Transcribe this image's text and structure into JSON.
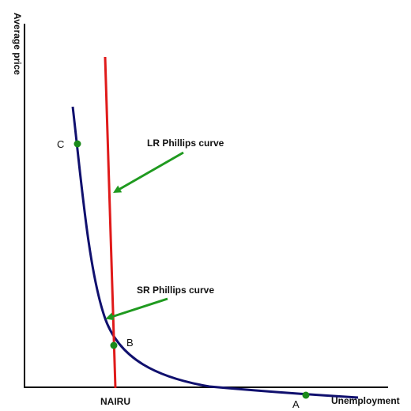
{
  "axes": {
    "y_label": "Average price",
    "x_label": "Unemployment",
    "x_tick": "NAIRU"
  },
  "curves": {
    "lr_label": "LR Phillips curve",
    "sr_label": "SR Phillips curve"
  },
  "points": {
    "a": "A",
    "b": "B",
    "c": "C"
  },
  "colors": {
    "axis": "#000000",
    "lr_curve": "#e01a1a",
    "sr_curve": "#10106e",
    "arrow": "#1f9a1f",
    "point": "#1a8a1a"
  }
}
